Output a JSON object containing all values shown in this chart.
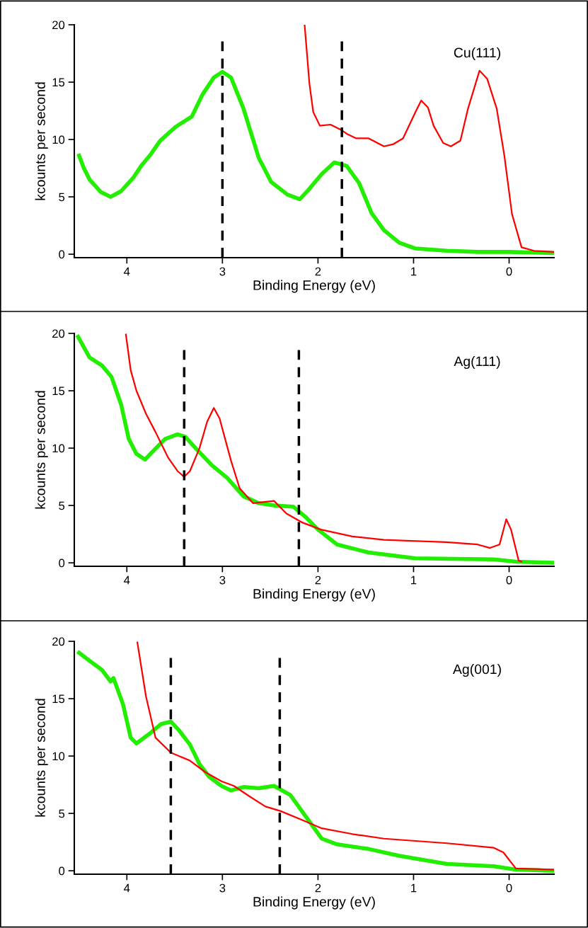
{
  "chart_data": [
    {
      "type": "line",
      "xlabel": "Binding Energy (eV)",
      "ylabel": "kcounts per second",
      "xlim": [
        4.55,
        -0.47
      ],
      "xticks": [
        4,
        3,
        2,
        1,
        0
      ],
      "ylim": [
        -0.3,
        20
      ],
      "yticks": [
        0,
        5,
        10,
        15,
        20
      ],
      "annotations": [
        "Cu(111)"
      ],
      "ref_lines": [
        {
          "axis": "x",
          "value": 3.0,
          "color": "#000000",
          "line_style": "dashed"
        },
        {
          "axis": "x",
          "value": 1.75,
          "color": "#000000",
          "line_style": "dashed"
        }
      ],
      "series": [
        {
          "color": "#22ee00",
          "x": [
            4.5,
            4.45,
            4.39,
            4.27,
            4.17,
            4.06,
            3.93,
            3.85,
            3.76,
            3.65,
            3.49,
            3.32,
            3.21,
            3.09,
            3.0,
            2.91,
            2.78,
            2.62,
            2.49,
            2.32,
            2.19,
            2.1,
            1.96,
            1.83,
            1.7,
            1.57,
            1.44,
            1.31,
            1.15,
            0.98,
            0.65,
            0.33,
            0.0,
            -0.47
          ],
          "values": [
            8.6,
            7.5,
            6.5,
            5.4,
            5.0,
            5.5,
            6.7,
            7.7,
            8.6,
            9.9,
            11.1,
            12.0,
            13.9,
            15.4,
            15.9,
            15.4,
            12.7,
            8.4,
            6.3,
            5.2,
            4.8,
            5.6,
            7.0,
            8.0,
            7.7,
            6.2,
            3.6,
            2.1,
            1.0,
            0.5,
            0.3,
            0.2,
            0.2,
            0.1
          ]
        },
        {
          "color": "#ff0000",
          "x": [
            2.14,
            2.09,
            2.05,
            1.98,
            1.87,
            1.75,
            1.7,
            1.6,
            1.47,
            1.31,
            1.21,
            1.11,
            0.98,
            0.92,
            0.85,
            0.79,
            0.69,
            0.61,
            0.51,
            0.43,
            0.31,
            0.23,
            0.13,
            0.05,
            -0.03,
            -0.13,
            -0.26,
            -0.47
          ],
          "values": [
            20.0,
            14.9,
            12.4,
            11.2,
            11.3,
            10.8,
            10.5,
            10.1,
            10.1,
            9.4,
            9.6,
            10.1,
            12.4,
            13.4,
            12.8,
            11.2,
            9.7,
            9.4,
            9.9,
            12.7,
            16.0,
            15.3,
            12.7,
            8.6,
            3.5,
            0.6,
            0.3,
            0.2
          ]
        }
      ]
    },
    {
      "type": "line",
      "xlabel": "Binding Energy (eV)",
      "ylabel": "kcounts per second",
      "xlim": [
        4.55,
        -0.47
      ],
      "xticks": [
        4,
        3,
        2,
        1,
        0
      ],
      "ylim": [
        -0.3,
        20
      ],
      "yticks": [
        0,
        5,
        10,
        15,
        20
      ],
      "annotations": [
        "Ag(111)"
      ],
      "ref_lines": [
        {
          "axis": "x",
          "value": 3.4,
          "color": "#000000",
          "line_style": "dashed"
        },
        {
          "axis": "x",
          "value": 2.2,
          "color": "#000000",
          "line_style": "dashed"
        }
      ],
      "series": [
        {
          "color": "#22ee00",
          "x": [
            4.51,
            4.39,
            4.26,
            4.16,
            4.06,
            3.98,
            3.9,
            3.81,
            3.73,
            3.6,
            3.47,
            3.39,
            3.27,
            3.11,
            2.95,
            2.78,
            2.62,
            2.46,
            2.26,
            2.13,
            2.0,
            1.8,
            1.47,
            0.98,
            0.16,
            -0.07,
            -0.47
          ],
          "values": [
            19.7,
            17.9,
            17.2,
            16.2,
            13.8,
            10.8,
            9.5,
            9.0,
            9.7,
            10.8,
            11.2,
            11.0,
            9.9,
            8.5,
            7.4,
            5.8,
            5.2,
            5.0,
            4.9,
            4.0,
            2.9,
            1.6,
            0.9,
            0.4,
            0.3,
            0.1,
            0.0
          ]
        },
        {
          "color": "#ff0000",
          "x": [
            4.01,
            3.96,
            3.9,
            3.8,
            3.7,
            3.57,
            3.47,
            3.4,
            3.34,
            3.24,
            3.16,
            3.09,
            3.03,
            2.91,
            2.82,
            2.68,
            2.46,
            2.33,
            2.16,
            1.97,
            1.64,
            1.31,
            0.66,
            0.33,
            0.2,
            0.1,
            0.03,
            -0.02,
            -0.1,
            -0.13
          ],
          "values": [
            19.9,
            16.8,
            15.0,
            13.0,
            11.4,
            9.2,
            8.0,
            7.5,
            8.0,
            10.0,
            12.3,
            13.5,
            12.6,
            8.9,
            6.5,
            5.2,
            5.4,
            4.3,
            3.5,
            2.9,
            2.3,
            2.0,
            1.8,
            1.6,
            1.3,
            1.6,
            3.8,
            2.9,
            0.2,
            0.1
          ]
        }
      ]
    },
    {
      "type": "line",
      "xlabel": "Binding Energy (eV)",
      "ylabel": "kcounts per second",
      "xlim": [
        4.55,
        -0.47
      ],
      "xticks": [
        4,
        3,
        2,
        1,
        0
      ],
      "ylim": [
        -0.3,
        20
      ],
      "yticks": [
        0,
        5,
        10,
        15,
        20
      ],
      "annotations": [
        "Ag(001)"
      ],
      "ref_lines": [
        {
          "axis": "x",
          "value": 3.54,
          "color": "#000000",
          "line_style": "dashed"
        },
        {
          "axis": "x",
          "value": 2.4,
          "color": "#000000",
          "line_style": "dashed"
        }
      ],
      "series": [
        {
          "color": "#22ee00",
          "x": [
            4.5,
            4.39,
            4.26,
            4.17,
            4.14,
            4.04,
            3.96,
            3.9,
            3.77,
            3.64,
            3.54,
            3.46,
            3.34,
            3.24,
            3.14,
            3.01,
            2.91,
            2.78,
            2.62,
            2.46,
            2.29,
            2.16,
            1.96,
            1.8,
            1.47,
            1.15,
            0.65,
            0.16,
            -0.07,
            -0.47
          ],
          "values": [
            19.0,
            18.3,
            17.5,
            16.5,
            16.8,
            14.5,
            11.6,
            11.1,
            11.9,
            12.8,
            13.0,
            12.3,
            11.0,
            9.3,
            8.2,
            7.4,
            7.0,
            7.3,
            7.2,
            7.4,
            6.6,
            5.1,
            2.8,
            2.3,
            1.9,
            1.3,
            0.6,
            0.4,
            0.1,
            0.0
          ]
        },
        {
          "color": "#ff0000",
          "x": [
            3.89,
            3.8,
            3.7,
            3.54,
            3.34,
            3.18,
            3.01,
            2.88,
            2.72,
            2.55,
            2.39,
            2.16,
            1.96,
            1.64,
            1.31,
            0.65,
            0.16,
            0.06,
            -0.07,
            -0.47
          ],
          "values": [
            19.9,
            15.2,
            11.6,
            10.3,
            9.6,
            8.6,
            7.8,
            7.4,
            6.5,
            5.6,
            5.2,
            4.4,
            3.7,
            3.2,
            2.8,
            2.4,
            2.0,
            1.6,
            0.2,
            0.1
          ]
        }
      ]
    }
  ]
}
